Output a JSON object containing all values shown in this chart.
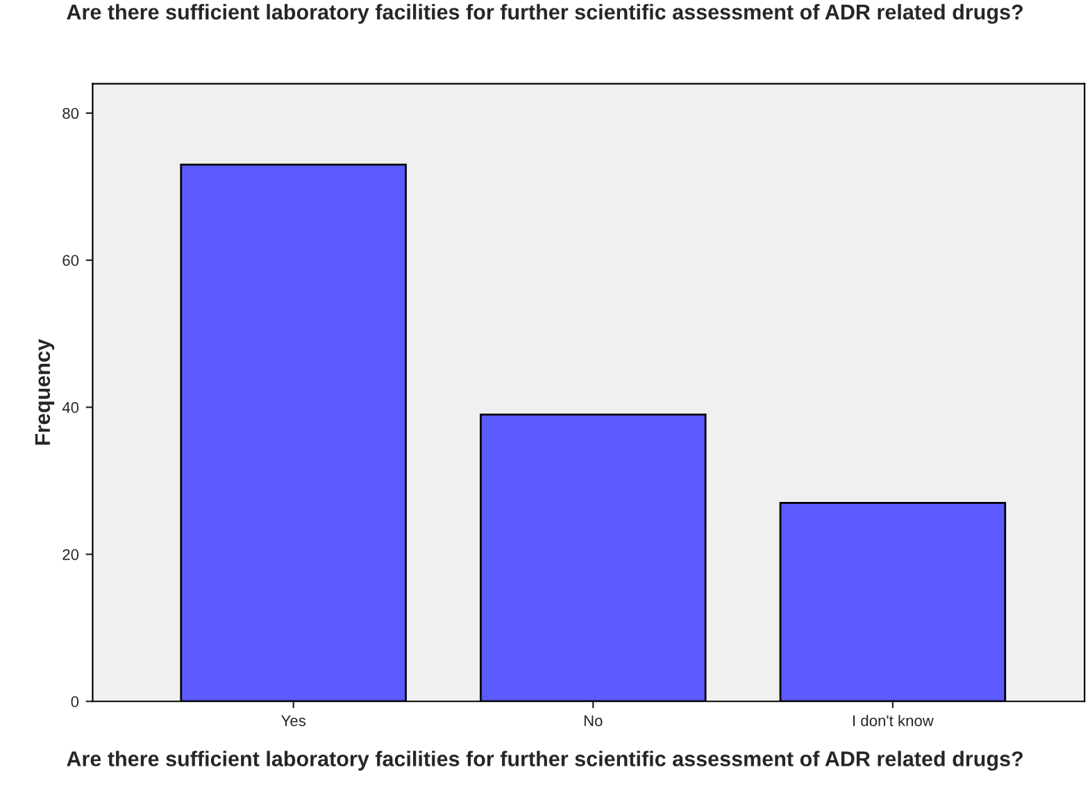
{
  "chart_data": {
    "type": "bar",
    "title": "Are there sufficient laboratory facilities for further scientific assessment of ADR related drugs?",
    "xlabel": "Are there sufficient laboratory facilities for further scientific assessment of ADR related drugs?",
    "ylabel": "Frequency",
    "categories": [
      "Yes",
      "No",
      "I don't know"
    ],
    "values": [
      73,
      39,
      27
    ],
    "color": "#5b5bff",
    "ylim": [
      0,
      84
    ],
    "yticks": [
      0,
      20,
      40,
      60,
      80
    ],
    "grid": false,
    "legend": false
  }
}
